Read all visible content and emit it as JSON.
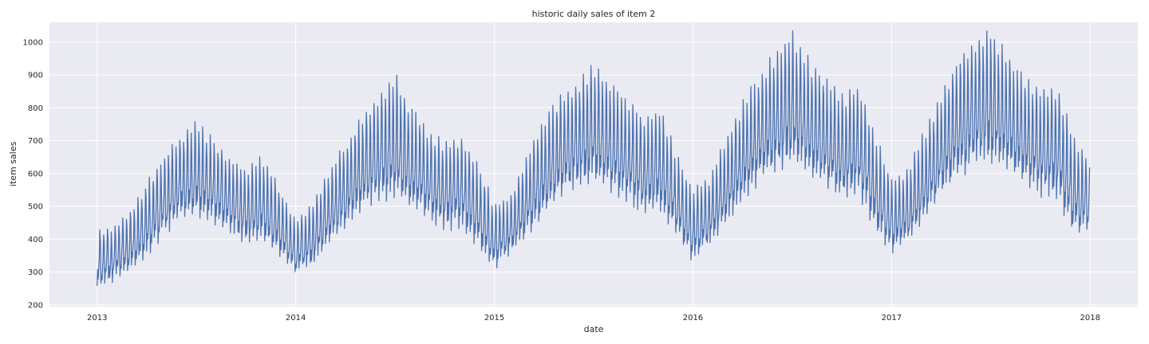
{
  "chart_data": {
    "type": "line",
    "title": "historic daily sales of item 2",
    "xlabel": "date",
    "ylabel": "item sales",
    "xlim": [
      2012.76,
      2018.24
    ],
    "ylim": [
      195,
      1060
    ],
    "grid": true,
    "x_ticks": [
      2013,
      2014,
      2015,
      2016,
      2017,
      2018
    ],
    "x_tick_labels": [
      "2013",
      "2014",
      "2015",
      "2016",
      "2017",
      "2018"
    ],
    "y_ticks": [
      200,
      300,
      400,
      500,
      600,
      700,
      800,
      900,
      1000
    ],
    "y_tick_labels": [
      "200",
      "300",
      "400",
      "500",
      "600",
      "700",
      "800",
      "900",
      "1000"
    ],
    "series": [
      {
        "name": "item 2",
        "color": "#4c72b0",
        "x": [
          2013.0,
          2013.0833,
          2013.1667,
          2013.25,
          2013.3333,
          2013.4167,
          2013.5,
          2013.5833,
          2013.6667,
          2013.75,
          2013.8333,
          2013.9167,
          2014.0,
          2014.0833,
          2014.1667,
          2014.25,
          2014.3333,
          2014.4167,
          2014.5,
          2014.5833,
          2014.6667,
          2014.75,
          2014.8333,
          2014.9167,
          2015.0,
          2015.0833,
          2015.1667,
          2015.25,
          2015.3333,
          2015.4167,
          2015.5,
          2015.5833,
          2015.6667,
          2015.75,
          2015.8333,
          2015.9167,
          2016.0,
          2016.0833,
          2016.1667,
          2016.25,
          2016.3333,
          2016.4167,
          2016.5,
          2016.5833,
          2016.6667,
          2016.75,
          2016.8333,
          2016.9167,
          2017.0,
          2017.0833,
          2017.1667,
          2017.25,
          2017.3333,
          2017.4167,
          2017.5,
          2017.5833,
          2017.6667,
          2017.75,
          2017.8333,
          2017.9167,
          2017.9973
        ],
        "values": [
          300,
          330,
          380,
          450,
          520,
          580,
          600,
          570,
          520,
          490,
          500,
          440,
          360,
          400,
          480,
          550,
          610,
          650,
          660,
          610,
          570,
          540,
          560,
          470,
          410,
          440,
          520,
          600,
          680,
          720,
          740,
          690,
          650,
          620,
          640,
          520,
          440,
          480,
          560,
          650,
          720,
          770,
          800,
          750,
          700,
          670,
          690,
          560,
          480,
          500,
          590,
          670,
          740,
          790,
          810,
          760,
          710,
          690,
          700,
          560,
          500
        ],
        "min_values": [
          240,
          265,
          300,
          340,
          400,
          450,
          460,
          440,
          410,
          380,
          380,
          340,
          285,
          310,
          370,
          420,
          470,
          505,
          510,
          480,
          450,
          420,
          420,
          360,
          300,
          350,
          400,
          460,
          520,
          550,
          560,
          530,
          500,
          470,
          470,
          400,
          320,
          370,
          430,
          500,
          560,
          590,
          610,
          580,
          550,
          510,
          520,
          420,
          340,
          380,
          450,
          520,
          570,
          600,
          620,
          590,
          560,
          520,
          510,
          400,
          420
        ],
        "max_values": [
          420,
          430,
          480,
          560,
          640,
          700,
          740,
          690,
          640,
          600,
          640,
          550,
          450,
          500,
          600,
          680,
          760,
          820,
          880,
          780,
          720,
          680,
          700,
          620,
          500,
          520,
          650,
          750,
          820,
          860,
          910,
          860,
          820,
          760,
          780,
          650,
          540,
          580,
          700,
          800,
          880,
          950,
          1010,
          930,
          870,
          820,
          850,
          700,
          580,
          600,
          720,
          830,
          930,
          990,
          1020,
          950,
          870,
          840,
          850,
          700,
          630
        ]
      }
    ]
  }
}
